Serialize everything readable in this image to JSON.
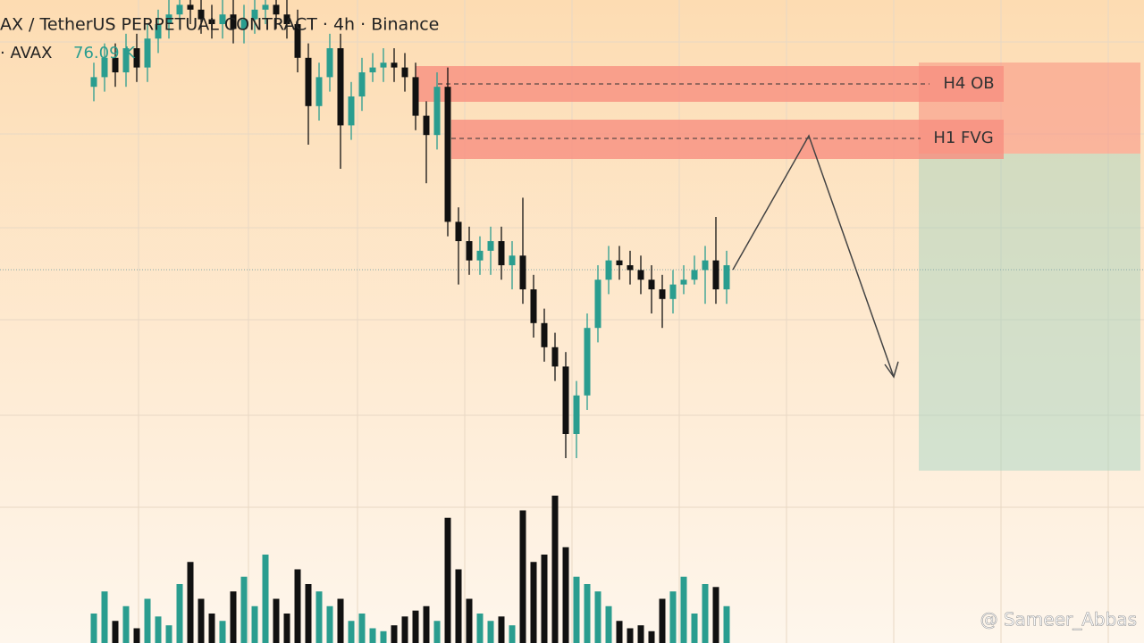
{
  "chart_data": {
    "type": "candlestick",
    "title": "AX / TetherUS PERPETUAL CONTRACT · 4h · Binance",
    "volume_symbol": "· AVAX",
    "volume_value": "76.09 K",
    "annotations": [
      "H4 OB",
      "H1 FVG"
    ],
    "watermark": "@ Sameer_Abbas",
    "up_color": "#2a9d8f",
    "down_color": "#111111",
    "ylim": [
      0,
      100
    ],
    "volume_ylim": [
      0,
      100
    ],
    "open": [
      82,
      84,
      88,
      85,
      90,
      86,
      92,
      95,
      97,
      99,
      98,
      96,
      95,
      97,
      94,
      96,
      98,
      99,
      97,
      95,
      88,
      78,
      84,
      90,
      74,
      80,
      85,
      86,
      87,
      86,
      84,
      76,
      72,
      82,
      54,
      50,
      46,
      48,
      50,
      45,
      47,
      40,
      33,
      28,
      24,
      10,
      18,
      32,
      42,
      46,
      45,
      44,
      42,
      40,
      38,
      41,
      42,
      44,
      46,
      40
    ],
    "high": [
      87,
      91,
      91,
      93,
      93,
      95,
      98,
      100,
      100,
      100,
      100,
      99,
      100,
      100,
      99,
      100,
      100,
      100,
      100,
      98,
      91,
      87,
      93,
      93,
      83,
      88,
      89,
      90,
      90,
      89,
      87,
      79,
      85,
      86,
      57,
      53,
      51,
      53,
      53,
      50,
      59,
      43,
      36,
      31,
      27,
      21,
      35,
      45,
      49,
      49,
      48,
      47,
      45,
      43,
      44,
      45,
      47,
      49,
      55,
      48
    ],
    "low": [
      79,
      81,
      82,
      82,
      83,
      83,
      89,
      92,
      94,
      95,
      93,
      92,
      92,
      91,
      91,
      93,
      95,
      94,
      92,
      85,
      70,
      75,
      81,
      65,
      71,
      77,
      83,
      83,
      83,
      81,
      73,
      62,
      69,
      51,
      41,
      43,
      43,
      43,
      42,
      40,
      37,
      30,
      25,
      21,
      5,
      5,
      15,
      29,
      39,
      42,
      41,
      39,
      35,
      32,
      35,
      39,
      41,
      37,
      37,
      37
    ],
    "close": [
      84,
      88,
      85,
      90,
      86,
      92,
      95,
      97,
      99,
      98,
      96,
      95,
      97,
      94,
      96,
      98,
      99,
      97,
      95,
      88,
      78,
      84,
      90,
      74,
      80,
      85,
      86,
      87,
      86,
      84,
      76,
      72,
      82,
      54,
      50,
      46,
      48,
      50,
      45,
      47,
      40,
      33,
      28,
      24,
      10,
      18,
      32,
      42,
      46,
      45,
      44,
      42,
      40,
      38,
      41,
      42,
      44,
      46,
      40,
      45
    ],
    "volume": [
      20,
      35,
      15,
      25,
      10,
      30,
      18,
      12,
      40,
      55,
      30,
      20,
      15,
      35,
      45,
      25,
      60,
      30,
      20,
      50,
      40,
      35,
      25,
      30,
      15,
      20,
      10,
      8,
      12,
      18,
      22,
      25,
      15,
      85,
      50,
      30,
      20,
      15,
      18,
      12,
      90,
      55,
      60,
      100,
      65,
      45,
      40,
      35,
      25,
      15,
      10,
      12,
      8,
      30,
      35,
      45,
      20,
      40,
      38,
      25
    ]
  }
}
